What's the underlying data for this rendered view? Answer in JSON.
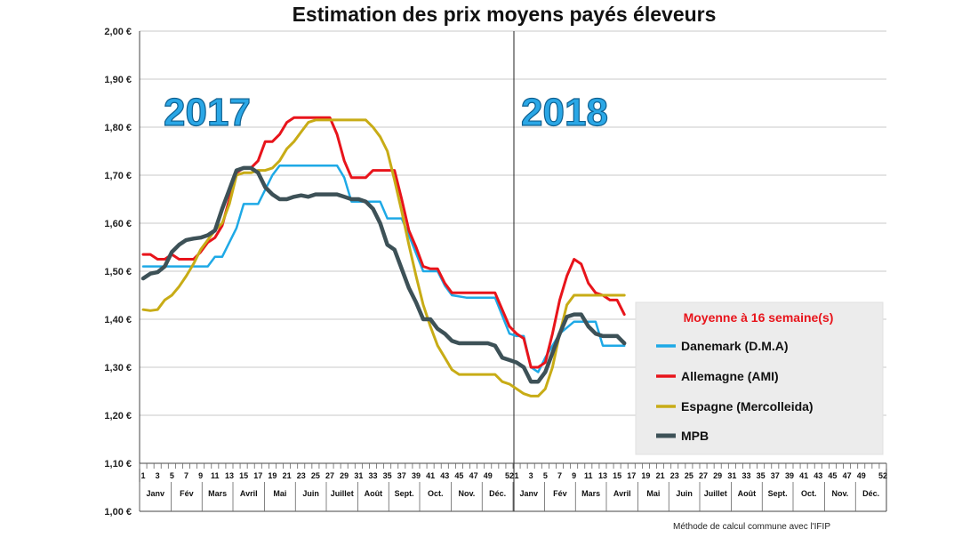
{
  "chart_data": {
    "type": "line",
    "title": "Estimation des prix moyens payés éleveurs",
    "ylim": [
      1.0,
      2.0
    ],
    "y_ticks": [
      1.0,
      1.1,
      1.2,
      1.3,
      1.4,
      1.5,
      1.6,
      1.7,
      1.8,
      1.9,
      2.0
    ],
    "y_tick_labels": [
      "1,00 €",
      "1,10 €",
      "1,20 €",
      "1,30 €",
      "1,40 €",
      "1,50 €",
      "1,60 €",
      "1,70 €",
      "1,80 €",
      "1,90 €",
      "2,00 €"
    ],
    "week_labels": [
      "1",
      "3",
      "5",
      "7",
      "9",
      "11",
      "13",
      "15",
      "17",
      "19",
      "21",
      "23",
      "25",
      "27",
      "29",
      "31",
      "33",
      "35",
      "37",
      "39",
      "41",
      "43",
      "45",
      "47",
      "49",
      "52",
      "1",
      "3",
      "5",
      "7",
      "9",
      "11",
      "13",
      "15",
      "17",
      "19",
      "21",
      "23",
      "25",
      "27",
      "29",
      "31",
      "33",
      "35",
      "37",
      "39",
      "41",
      "43",
      "45",
      "47",
      "49",
      "52"
    ],
    "month_labels": [
      "Janv",
      "Fév",
      "Mars",
      "Avril",
      "Mai",
      "Juin",
      "Juillet",
      "Août",
      "Sept.",
      "Oct.",
      "Nov.",
      "Déc.",
      "Janv",
      "Fév",
      "Mars",
      "Avril",
      "Mai",
      "Juin",
      "Juillet",
      "Août",
      "Sept.",
      "Oct.",
      "Nov.",
      "Déc."
    ],
    "year_labels": [
      "2017",
      "2018"
    ],
    "legend_title": "Moyenne à  16 semaine(s)",
    "legend_placement": "right",
    "grid": true,
    "series": [
      {
        "name": "Danemark (D.M.A)",
        "color": "#1ea9e6",
        "points": [
          [
            1,
            1.51
          ],
          [
            3,
            1.51
          ],
          [
            5,
            1.51
          ],
          [
            7,
            1.51
          ],
          [
            9,
            1.51
          ],
          [
            10,
            1.51
          ],
          [
            11,
            1.53
          ],
          [
            12,
            1.53
          ],
          [
            14,
            1.59
          ],
          [
            15,
            1.64
          ],
          [
            17,
            1.64
          ],
          [
            19,
            1.7
          ],
          [
            20,
            1.72
          ],
          [
            22,
            1.72
          ],
          [
            24,
            1.72
          ],
          [
            26,
            1.72
          ],
          [
            28,
            1.72
          ],
          [
            29,
            1.695
          ],
          [
            30,
            1.645
          ],
          [
            32,
            1.645
          ],
          [
            34,
            1.645
          ],
          [
            35,
            1.61
          ],
          [
            37,
            1.61
          ],
          [
            38,
            1.575
          ],
          [
            40,
            1.5
          ],
          [
            42,
            1.5
          ],
          [
            43,
            1.47
          ],
          [
            44,
            1.45
          ],
          [
            46,
            1.445
          ],
          [
            48,
            1.445
          ],
          [
            50,
            1.445
          ],
          [
            52,
            1.37
          ],
          [
            53,
            1.365
          ],
          [
            54,
            1.365
          ],
          [
            55,
            1.3
          ],
          [
            56,
            1.29
          ],
          [
            57,
            1.32
          ],
          [
            59,
            1.37
          ],
          [
            61,
            1.395
          ],
          [
            63,
            1.395
          ],
          [
            64,
            1.395
          ],
          [
            65,
            1.345
          ],
          [
            66,
            1.345
          ],
          [
            67,
            1.345
          ],
          [
            68,
            1.345
          ]
        ]
      },
      {
        "name": "Allemagne (AMI)",
        "color": "#e8141b",
        "points": [
          [
            1,
            1.535
          ],
          [
            2,
            1.535
          ],
          [
            3,
            1.525
          ],
          [
            4,
            1.525
          ],
          [
            5,
            1.535
          ],
          [
            6,
            1.525
          ],
          [
            7,
            1.525
          ],
          [
            8,
            1.525
          ],
          [
            9,
            1.54
          ],
          [
            10,
            1.56
          ],
          [
            11,
            1.57
          ],
          [
            12,
            1.595
          ],
          [
            13,
            1.65
          ],
          [
            14,
            1.705
          ],
          [
            15,
            1.715
          ],
          [
            16,
            1.715
          ],
          [
            17,
            1.73
          ],
          [
            18,
            1.77
          ],
          [
            19,
            1.77
          ],
          [
            20,
            1.785
          ],
          [
            21,
            1.81
          ],
          [
            22,
            1.82
          ],
          [
            24,
            1.82
          ],
          [
            26,
            1.82
          ],
          [
            27,
            1.82
          ],
          [
            28,
            1.785
          ],
          [
            29,
            1.73
          ],
          [
            30,
            1.695
          ],
          [
            32,
            1.695
          ],
          [
            33,
            1.71
          ],
          [
            35,
            1.71
          ],
          [
            36,
            1.71
          ],
          [
            37,
            1.65
          ],
          [
            38,
            1.585
          ],
          [
            39,
            1.55
          ],
          [
            40,
            1.51
          ],
          [
            41,
            1.505
          ],
          [
            42,
            1.505
          ],
          [
            43,
            1.475
          ],
          [
            44,
            1.455
          ],
          [
            46,
            1.455
          ],
          [
            48,
            1.455
          ],
          [
            50,
            1.455
          ],
          [
            51,
            1.42
          ],
          [
            52,
            1.385
          ],
          [
            53,
            1.37
          ],
          [
            54,
            1.36
          ],
          [
            55,
            1.3
          ],
          [
            56,
            1.3
          ],
          [
            57,
            1.31
          ],
          [
            58,
            1.37
          ],
          [
            59,
            1.44
          ],
          [
            60,
            1.49
          ],
          [
            61,
            1.525
          ],
          [
            62,
            1.515
          ],
          [
            63,
            1.475
          ],
          [
            64,
            1.455
          ],
          [
            65,
            1.45
          ],
          [
            66,
            1.44
          ],
          [
            67,
            1.44
          ],
          [
            68,
            1.41
          ]
        ]
      },
      {
        "name": "Espagne (Mercolleida)",
        "color": "#c8ac16",
        "points": [
          [
            1,
            1.42
          ],
          [
            2,
            1.418
          ],
          [
            3,
            1.42
          ],
          [
            4,
            1.44
          ],
          [
            5,
            1.45
          ],
          [
            6,
            1.468
          ],
          [
            7,
            1.49
          ],
          [
            8,
            1.515
          ],
          [
            9,
            1.545
          ],
          [
            10,
            1.565
          ],
          [
            11,
            1.585
          ],
          [
            12,
            1.6
          ],
          [
            13,
            1.64
          ],
          [
            14,
            1.7
          ],
          [
            15,
            1.705
          ],
          [
            16,
            1.705
          ],
          [
            17,
            1.71
          ],
          [
            18,
            1.71
          ],
          [
            19,
            1.715
          ],
          [
            20,
            1.73
          ],
          [
            21,
            1.755
          ],
          [
            22,
            1.77
          ],
          [
            23,
            1.79
          ],
          [
            24,
            1.81
          ],
          [
            25,
            1.815
          ],
          [
            27,
            1.815
          ],
          [
            29,
            1.815
          ],
          [
            31,
            1.815
          ],
          [
            32,
            1.815
          ],
          [
            33,
            1.8
          ],
          [
            34,
            1.78
          ],
          [
            35,
            1.75
          ],
          [
            36,
            1.69
          ],
          [
            37,
            1.625
          ],
          [
            38,
            1.555
          ],
          [
            39,
            1.49
          ],
          [
            40,
            1.43
          ],
          [
            41,
            1.385
          ],
          [
            42,
            1.345
          ],
          [
            43,
            1.32
          ],
          [
            44,
            1.295
          ],
          [
            45,
            1.285
          ],
          [
            47,
            1.285
          ],
          [
            49,
            1.285
          ],
          [
            50,
            1.285
          ],
          [
            51,
            1.27
          ],
          [
            52,
            1.265
          ],
          [
            53,
            1.255
          ],
          [
            54,
            1.245
          ],
          [
            55,
            1.24
          ],
          [
            56,
            1.24
          ],
          [
            57,
            1.255
          ],
          [
            58,
            1.3
          ],
          [
            59,
            1.37
          ],
          [
            60,
            1.43
          ],
          [
            61,
            1.45
          ],
          [
            63,
            1.45
          ],
          [
            65,
            1.45
          ],
          [
            67,
            1.45
          ],
          [
            68,
            1.45
          ]
        ]
      },
      {
        "name": "MPB",
        "color": "#3d5157",
        "points": [
          [
            1,
            1.485
          ],
          [
            2,
            1.495
          ],
          [
            3,
            1.498
          ],
          [
            4,
            1.51
          ],
          [
            5,
            1.54
          ],
          [
            6,
            1.555
          ],
          [
            7,
            1.565
          ],
          [
            8,
            1.568
          ],
          [
            9,
            1.57
          ],
          [
            10,
            1.575
          ],
          [
            11,
            1.585
          ],
          [
            12,
            1.63
          ],
          [
            13,
            1.67
          ],
          [
            14,
            1.71
          ],
          [
            15,
            1.715
          ],
          [
            16,
            1.715
          ],
          [
            17,
            1.705
          ],
          [
            18,
            1.675
          ],
          [
            19,
            1.66
          ],
          [
            20,
            1.65
          ],
          [
            21,
            1.65
          ],
          [
            22,
            1.655
          ],
          [
            23,
            1.658
          ],
          [
            24,
            1.655
          ],
          [
            25,
            1.66
          ],
          [
            27,
            1.66
          ],
          [
            28,
            1.66
          ],
          [
            29,
            1.655
          ],
          [
            30,
            1.65
          ],
          [
            31,
            1.65
          ],
          [
            32,
            1.645
          ],
          [
            33,
            1.63
          ],
          [
            34,
            1.6
          ],
          [
            35,
            1.555
          ],
          [
            36,
            1.545
          ],
          [
            37,
            1.505
          ],
          [
            38,
            1.465
          ],
          [
            39,
            1.435
          ],
          [
            40,
            1.4
          ],
          [
            41,
            1.4
          ],
          [
            42,
            1.38
          ],
          [
            43,
            1.37
          ],
          [
            44,
            1.355
          ],
          [
            45,
            1.35
          ],
          [
            47,
            1.35
          ],
          [
            49,
            1.35
          ],
          [
            50,
            1.345
          ],
          [
            51,
            1.32
          ],
          [
            52,
            1.315
          ],
          [
            53,
            1.31
          ],
          [
            54,
            1.3
          ],
          [
            55,
            1.27
          ],
          [
            56,
            1.27
          ],
          [
            57,
            1.29
          ],
          [
            58,
            1.33
          ],
          [
            59,
            1.37
          ],
          [
            60,
            1.405
          ],
          [
            61,
            1.41
          ],
          [
            62,
            1.41
          ],
          [
            63,
            1.385
          ],
          [
            64,
            1.37
          ],
          [
            65,
            1.365
          ],
          [
            66,
            1.365
          ],
          [
            67,
            1.365
          ],
          [
            68,
            1.35
          ]
        ]
      }
    ],
    "annotations": {
      "year_divider_week_index": 53
    }
  },
  "footnote": "Méthode de calcul commune avec l'IFIP"
}
